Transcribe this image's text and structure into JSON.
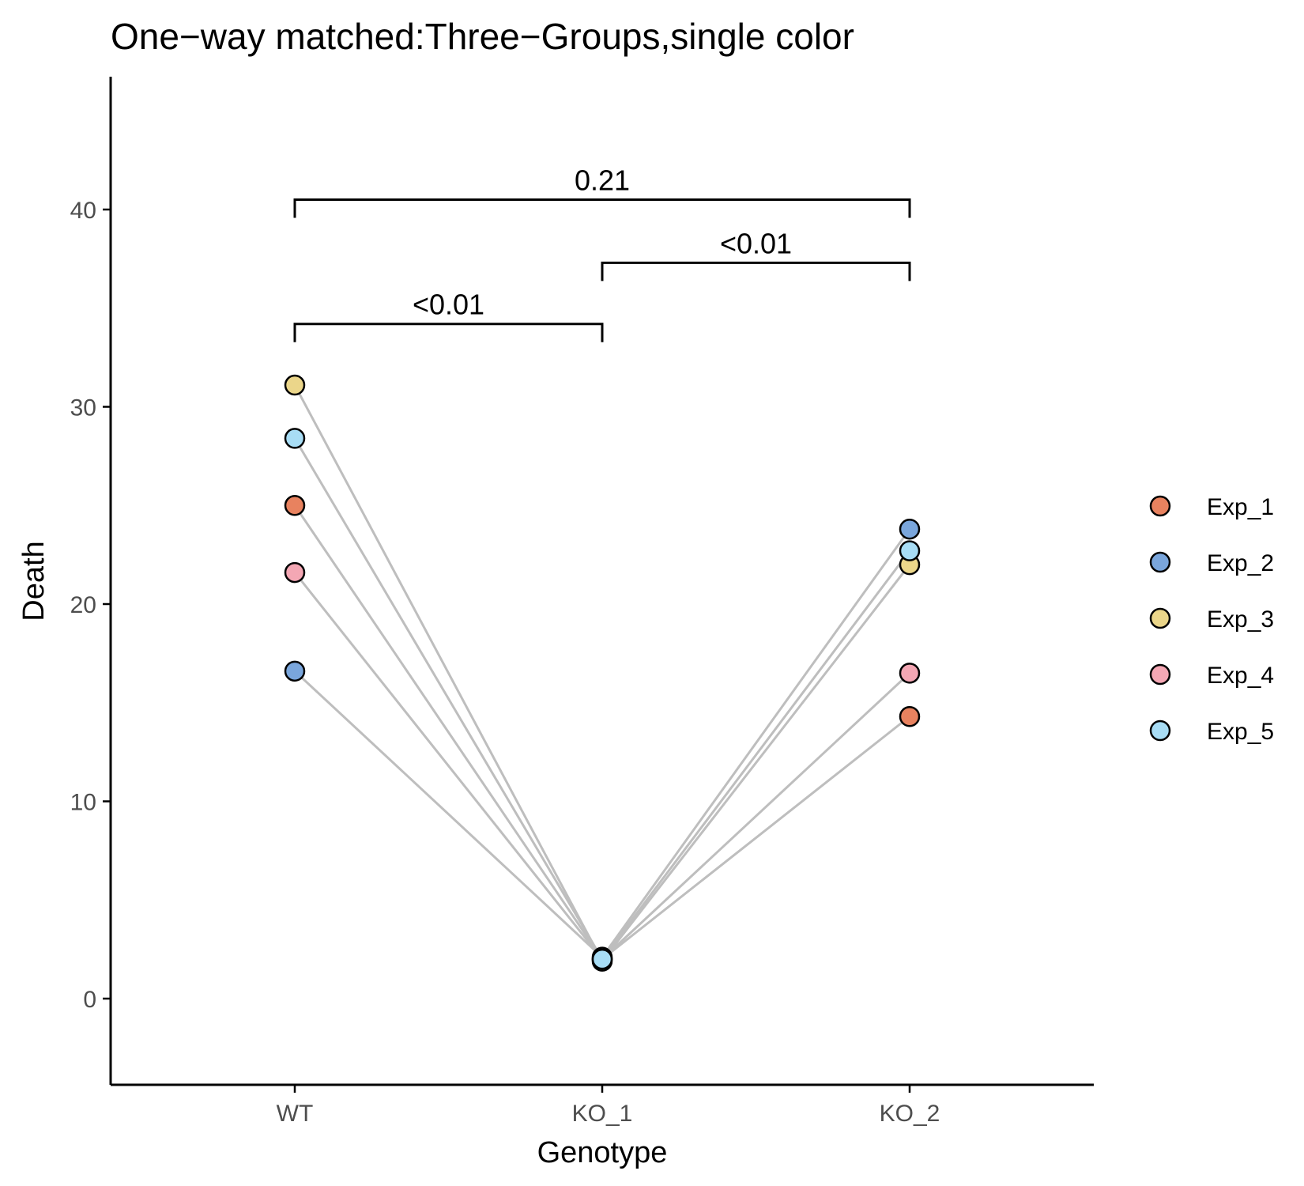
{
  "chart_data": {
    "type": "scatter",
    "title": "One−way matched:Three−Groups,single color",
    "xlabel": "Genotype",
    "ylabel": "Death",
    "categories": [
      "WT",
      "KO_1",
      "KO_2"
    ],
    "ylim": [
      -4.5,
      46.5
    ],
    "yticks": [
      0,
      10,
      20,
      30,
      40
    ],
    "grid": false,
    "legend_position": "right",
    "series": [
      {
        "name": "Exp_1",
        "color": "#E8825F",
        "values": [
          25.0,
          2.0,
          14.3
        ]
      },
      {
        "name": "Exp_2",
        "color": "#7AA6DC",
        "values": [
          16.6,
          2.1,
          23.8
        ]
      },
      {
        "name": "Exp_3",
        "color": "#EBD68A",
        "values": [
          31.1,
          1.9,
          22.0
        ]
      },
      {
        "name": "Exp_4",
        "color": "#F4A7B4",
        "values": [
          21.6,
          2.0,
          16.5
        ]
      },
      {
        "name": "Exp_5",
        "color": "#A8DDF5",
        "values": [
          28.4,
          2.0,
          22.7
        ]
      }
    ],
    "connector_color": "#BEBEBE",
    "comparisons": [
      {
        "from": "WT",
        "to": "KO_1",
        "y": 34.2,
        "label": "<0.01"
      },
      {
        "from": "KO_1",
        "to": "KO_2",
        "y": 37.3,
        "label": "<0.01"
      },
      {
        "from": "WT",
        "to": "KO_2",
        "y": 40.5,
        "label": "0.21"
      }
    ]
  }
}
